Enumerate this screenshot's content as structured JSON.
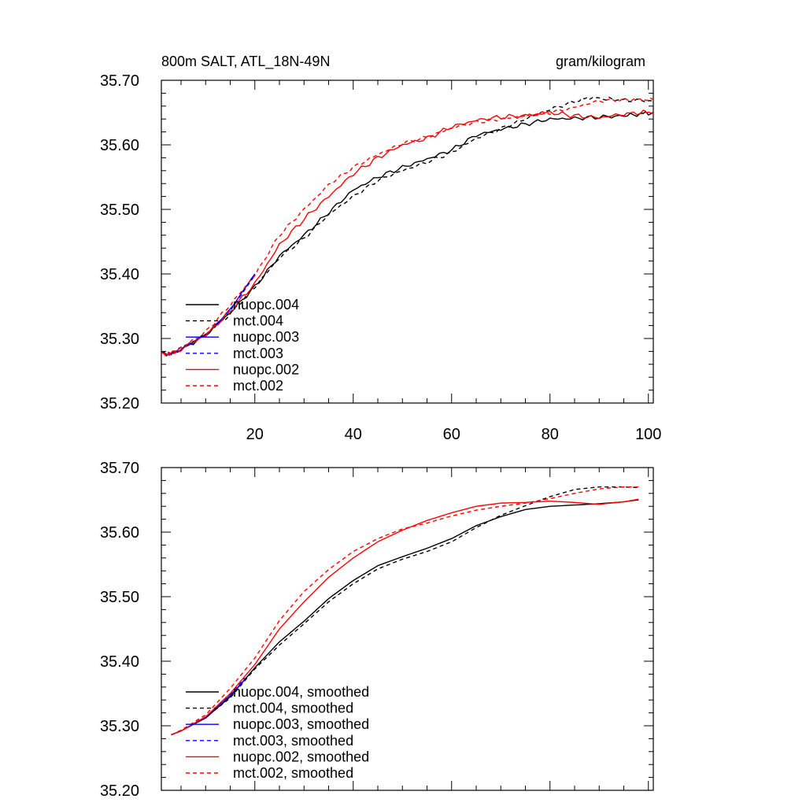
{
  "chart_data": [
    {
      "type": "line",
      "title_left": "800m SALT, ATL_18N-49N",
      "title_right": "gram/kilogram",
      "xlim": [
        1,
        101
      ],
      "ylim": [
        35.2,
        35.7
      ],
      "xticks": [
        20,
        40,
        60,
        80,
        100
      ],
      "yticks": [
        "35.20",
        "35.30",
        "35.40",
        "35.50",
        "35.60",
        "35.70"
      ],
      "show_x_tick_labels": true,
      "legend_position": "lower-left",
      "series": [
        {
          "name": "nuopc.004",
          "color": "#000000",
          "dash": false,
          "wiggle": 0.0035,
          "x": [
            1,
            3,
            5,
            10,
            15,
            20,
            25,
            30,
            35,
            40,
            45,
            50,
            55,
            60,
            65,
            70,
            75,
            80,
            85,
            90,
            95,
            99,
            101
          ],
          "y": [
            35.278,
            35.275,
            35.283,
            35.305,
            35.34,
            35.38,
            35.428,
            35.46,
            35.495,
            35.53,
            35.55,
            35.565,
            35.578,
            35.592,
            35.615,
            35.624,
            35.632,
            35.64,
            35.641,
            35.643,
            35.645,
            35.648,
            35.65
          ]
        },
        {
          "name": "mct.004",
          "color": "#000000",
          "dash": true,
          "wiggle": 0.003,
          "x": [
            1,
            3,
            5,
            10,
            15,
            20,
            25,
            30,
            35,
            40,
            45,
            50,
            55,
            60,
            65,
            70,
            75,
            80,
            85,
            88,
            92,
            96,
            101
          ],
          "y": [
            35.278,
            35.276,
            35.284,
            35.306,
            35.338,
            35.38,
            35.425,
            35.455,
            35.492,
            35.52,
            35.545,
            35.56,
            35.573,
            35.588,
            35.61,
            35.625,
            35.64,
            35.655,
            35.667,
            35.673,
            35.671,
            35.669,
            35.668
          ]
        },
        {
          "name": "nuopc.003",
          "color": "#0000ff",
          "dash": false,
          "wiggle": 0.0015,
          "x": [
            1,
            3,
            5,
            10,
            15,
            20
          ],
          "y": [
            35.278,
            35.276,
            35.283,
            35.305,
            35.345,
            35.4
          ]
        },
        {
          "name": "mct.003",
          "color": "#0000ff",
          "dash": true,
          "wiggle": 0.0,
          "x": [
            1,
            3,
            5,
            10,
            15,
            20
          ],
          "y": [
            35.278,
            35.277,
            35.284,
            35.306,
            35.343,
            35.398
          ]
        },
        {
          "name": "nuopc.002",
          "color": "#ff0000",
          "dash": false,
          "wiggle": 0.004,
          "x": [
            1,
            3,
            5,
            10,
            15,
            20,
            25,
            30,
            35,
            40,
            45,
            50,
            55,
            60,
            65,
            70,
            75,
            80,
            85,
            90,
            95,
            99,
            101
          ],
          "y": [
            35.278,
            35.276,
            35.284,
            35.305,
            35.342,
            35.385,
            35.445,
            35.485,
            35.52,
            35.555,
            35.58,
            35.6,
            35.61,
            35.628,
            35.638,
            35.643,
            35.645,
            35.65,
            35.645,
            35.642,
            35.648,
            35.65,
            35.652
          ]
        },
        {
          "name": "mct.002",
          "color": "#ff0000",
          "dash": true,
          "wiggle": 0.003,
          "x": [
            1,
            3,
            5,
            10,
            15,
            20,
            25,
            30,
            35,
            40,
            45,
            50,
            55,
            60,
            65,
            70,
            75,
            80,
            85,
            90,
            95,
            99,
            101
          ],
          "y": [
            35.278,
            35.276,
            35.285,
            35.31,
            35.352,
            35.398,
            35.46,
            35.5,
            35.538,
            35.565,
            35.585,
            35.602,
            35.612,
            35.626,
            35.635,
            35.64,
            35.645,
            35.65,
            35.658,
            35.668,
            35.67,
            35.67,
            35.67
          ]
        }
      ]
    },
    {
      "type": "line",
      "title_left": "",
      "title_right": "",
      "xlim": [
        1,
        101
      ],
      "ylim": [
        35.2,
        35.7
      ],
      "xticks": [
        20,
        40,
        60,
        80,
        100
      ],
      "yticks": [
        "35.20",
        "35.30",
        "35.40",
        "35.50",
        "35.60",
        "35.70"
      ],
      "show_x_tick_labels": false,
      "legend_position": "lower-left",
      "series": [
        {
          "name": "nuopc.004, smoothed",
          "color": "#000000",
          "dash": false,
          "wiggle": 0,
          "x": [
            3,
            5,
            10,
            15,
            20,
            25,
            30,
            35,
            40,
            45,
            50,
            55,
            60,
            65,
            70,
            75,
            80,
            85,
            90,
            95,
            98
          ],
          "y": [
            35.286,
            35.292,
            35.312,
            35.345,
            35.39,
            35.43,
            35.462,
            35.497,
            35.525,
            35.548,
            35.562,
            35.575,
            35.59,
            35.61,
            35.624,
            35.635,
            35.64,
            35.642,
            35.644,
            35.647,
            35.65
          ]
        },
        {
          "name": "mct.004, smoothed",
          "color": "#000000",
          "dash": true,
          "wiggle": 0,
          "x": [
            3,
            5,
            10,
            15,
            20,
            25,
            30,
            35,
            40,
            45,
            50,
            55,
            60,
            65,
            70,
            75,
            80,
            85,
            90,
            95,
            98
          ],
          "y": [
            35.286,
            35.292,
            35.313,
            35.343,
            35.388,
            35.425,
            35.458,
            35.492,
            35.52,
            35.543,
            35.558,
            35.57,
            35.585,
            35.607,
            35.626,
            35.641,
            35.655,
            35.666,
            35.67,
            35.67,
            35.669
          ]
        },
        {
          "name": "nuopc.003, smoothed",
          "color": "#0000ff",
          "dash": false,
          "wiggle": 0,
          "x": [
            3,
            5,
            10,
            15,
            18
          ],
          "y": [
            35.286,
            35.292,
            35.313,
            35.347,
            35.372
          ]
        },
        {
          "name": "mct.003, smoothed",
          "color": "#0000ff",
          "dash": true,
          "wiggle": 0,
          "x": [
            3,
            5,
            10,
            15,
            18
          ],
          "y": [
            35.286,
            35.293,
            35.314,
            35.348,
            35.374
          ]
        },
        {
          "name": "nuopc.002, smoothed",
          "color": "#ff0000",
          "dash": false,
          "wiggle": 0,
          "x": [
            3,
            5,
            10,
            15,
            20,
            25,
            30,
            35,
            40,
            45,
            50,
            55,
            60,
            65,
            70,
            75,
            80,
            85,
            90,
            95,
            98
          ],
          "y": [
            35.286,
            35.292,
            35.314,
            35.35,
            35.395,
            35.45,
            35.492,
            35.53,
            35.56,
            35.585,
            35.603,
            35.618,
            35.63,
            35.64,
            35.645,
            35.646,
            35.648,
            35.646,
            35.643,
            35.647,
            35.651
          ]
        },
        {
          "name": "mct.002, smoothed",
          "color": "#ff0000",
          "dash": true,
          "wiggle": 0,
          "x": [
            3,
            5,
            10,
            15,
            20,
            25,
            30,
            35,
            40,
            45,
            50,
            55,
            60,
            65,
            70,
            75,
            80,
            85,
            90,
            95,
            98
          ],
          "y": [
            35.286,
            35.293,
            35.317,
            35.358,
            35.405,
            35.463,
            35.508,
            35.542,
            35.57,
            35.59,
            35.605,
            35.614,
            35.625,
            35.634,
            35.64,
            35.645,
            35.652,
            35.66,
            35.667,
            35.67,
            35.67
          ]
        }
      ]
    }
  ]
}
